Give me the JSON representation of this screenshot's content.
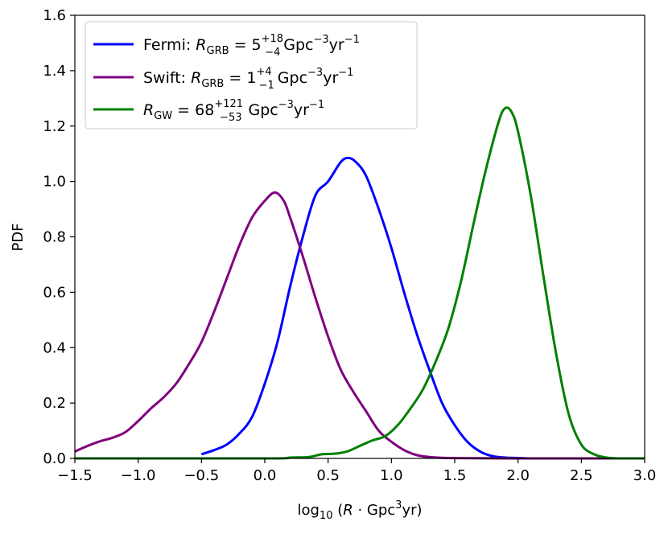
{
  "chart_data": {
    "type": "line",
    "xlabel": "log10 (R · Gpc3yr)",
    "ylabel": "PDF",
    "xlim": [
      -1.5,
      3.0
    ],
    "ylim": [
      0.0,
      1.6
    ],
    "xticks": [
      "−1.5",
      "−1.0",
      "−0.5",
      "0.0",
      "0.5",
      "1.0",
      "1.5",
      "2.0",
      "2.5",
      "3.0"
    ],
    "yticks": [
      "0.0",
      "0.2",
      "0.4",
      "0.6",
      "0.8",
      "1.0",
      "1.2",
      "1.4",
      "1.6"
    ],
    "grid": false,
    "legend_position": "top-left",
    "series": [
      {
        "name": "Fermi: R_GRB = 5 (+18 −4) Gpc^−3 yr^−1",
        "color": "#0000ff",
        "points": [
          [
            -0.5,
            0.015
          ],
          [
            -0.4,
            0.03
          ],
          [
            -0.3,
            0.05
          ],
          [
            -0.2,
            0.09
          ],
          [
            -0.1,
            0.15
          ],
          [
            0.0,
            0.27
          ],
          [
            0.1,
            0.42
          ],
          [
            0.2,
            0.62
          ],
          [
            0.3,
            0.8
          ],
          [
            0.4,
            0.95
          ],
          [
            0.5,
            1.0
          ],
          [
            0.6,
            1.07
          ],
          [
            0.66,
            1.085
          ],
          [
            0.72,
            1.07
          ],
          [
            0.8,
            1.02
          ],
          [
            0.9,
            0.9
          ],
          [
            1.0,
            0.76
          ],
          [
            1.1,
            0.6
          ],
          [
            1.2,
            0.45
          ],
          [
            1.3,
            0.32
          ],
          [
            1.4,
            0.2
          ],
          [
            1.5,
            0.12
          ],
          [
            1.6,
            0.06
          ],
          [
            1.7,
            0.025
          ],
          [
            1.8,
            0.008
          ],
          [
            1.9,
            0.003
          ],
          [
            2.1,
            0.0
          ]
        ]
      },
      {
        "name": "Swift: R_GRB = 1 (+4 −1) Gpc^−3 yr^−1",
        "color": "#800080",
        "points": [
          [
            -1.5,
            0.025
          ],
          [
            -1.4,
            0.045
          ],
          [
            -1.3,
            0.062
          ],
          [
            -1.2,
            0.075
          ],
          [
            -1.1,
            0.095
          ],
          [
            -1.0,
            0.135
          ],
          [
            -0.9,
            0.18
          ],
          [
            -0.8,
            0.22
          ],
          [
            -0.7,
            0.27
          ],
          [
            -0.6,
            0.34
          ],
          [
            -0.5,
            0.42
          ],
          [
            -0.4,
            0.53
          ],
          [
            -0.3,
            0.65
          ],
          [
            -0.2,
            0.77
          ],
          [
            -0.1,
            0.87
          ],
          [
            0.0,
            0.93
          ],
          [
            0.08,
            0.96
          ],
          [
            0.15,
            0.93
          ],
          [
            0.2,
            0.87
          ],
          [
            0.3,
            0.73
          ],
          [
            0.4,
            0.58
          ],
          [
            0.5,
            0.44
          ],
          [
            0.6,
            0.32
          ],
          [
            0.7,
            0.24
          ],
          [
            0.8,
            0.17
          ],
          [
            0.9,
            0.1
          ],
          [
            1.0,
            0.06
          ],
          [
            1.1,
            0.03
          ],
          [
            1.2,
            0.012
          ],
          [
            1.3,
            0.005
          ],
          [
            1.5,
            0.001
          ],
          [
            2.0,
            0.0
          ],
          [
            3.0,
            0.0
          ]
        ]
      },
      {
        "name": "R_GW = 68 (+121 −53) Gpc^−3 yr^−1",
        "color": "#008000",
        "points": [
          [
            -1.5,
            0.0
          ],
          [
            0.0,
            0.0
          ],
          [
            0.2,
            0.003
          ],
          [
            0.35,
            0.005
          ],
          [
            0.45,
            0.015
          ],
          [
            0.55,
            0.017
          ],
          [
            0.65,
            0.025
          ],
          [
            0.75,
            0.045
          ],
          [
            0.85,
            0.065
          ],
          [
            0.95,
            0.08
          ],
          [
            1.05,
            0.12
          ],
          [
            1.15,
            0.18
          ],
          [
            1.25,
            0.25
          ],
          [
            1.35,
            0.35
          ],
          [
            1.45,
            0.47
          ],
          [
            1.55,
            0.64
          ],
          [
            1.65,
            0.85
          ],
          [
            1.75,
            1.05
          ],
          [
            1.85,
            1.22
          ],
          [
            1.9,
            1.265
          ],
          [
            1.95,
            1.25
          ],
          [
            2.0,
            1.18
          ],
          [
            2.1,
            0.95
          ],
          [
            2.2,
            0.66
          ],
          [
            2.3,
            0.38
          ],
          [
            2.4,
            0.16
          ],
          [
            2.5,
            0.05
          ],
          [
            2.6,
            0.015
          ],
          [
            2.7,
            0.003
          ],
          [
            2.8,
            0.0
          ],
          [
            3.0,
            0.0
          ]
        ]
      }
    ]
  },
  "legend": {
    "fermi": {
      "prefix": "Fermi: ",
      "symbol": "R",
      "sub": "GRB",
      "eq": " = 5",
      "sup_plus": "+18",
      "sub_minus": "−4",
      "unit": "Gpc",
      "unit_exp": "−3",
      "unit2": "yr",
      "unit2_exp": "−1"
    },
    "swift": {
      "prefix": "Swift: ",
      "symbol": "R",
      "sub": "GRB",
      "eq": " = 1",
      "sup_plus": "+4",
      "sub_minus": "−1",
      "unit": "Gpc",
      "unit_exp": "−3",
      "unit2": "yr",
      "unit2_exp": "−1"
    },
    "gw": {
      "prefix": "",
      "symbol": "R",
      "sub": "GW",
      "eq": " = 68",
      "sup_plus": "+121",
      "sub_minus": "−53",
      "unit": "Gpc",
      "unit_exp": "−3",
      "unit2": "yr",
      "unit2_exp": "−1"
    }
  },
  "axes": {
    "ylabel": "PDF",
    "xlabel_prefix": "log",
    "xlabel_log_sub": "10",
    "xlabel_open": " (",
    "xlabel_symbol": "R",
    "xlabel_mid": " · Gpc",
    "xlabel_exp": "3",
    "xlabel_end": "yr)"
  }
}
